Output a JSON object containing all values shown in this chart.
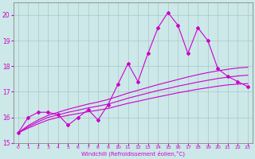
{
  "xlabel": "Windchill (Refroidissement éolien,°C)",
  "x": [
    0,
    1,
    2,
    3,
    4,
    5,
    6,
    7,
    8,
    9,
    10,
    11,
    12,
    13,
    14,
    15,
    16,
    17,
    18,
    19,
    20,
    21,
    22,
    23
  ],
  "y_main": [
    15.4,
    16.0,
    16.2,
    16.2,
    16.1,
    15.7,
    16.0,
    16.3,
    15.9,
    16.5,
    17.3,
    18.1,
    17.4,
    18.5,
    19.5,
    20.1,
    19.6,
    18.5,
    19.5,
    19.0,
    17.9,
    17.6,
    17.4,
    17.2
  ],
  "y_line1": [
    15.4,
    15.58,
    15.75,
    15.9,
    16.0,
    16.08,
    16.15,
    16.22,
    16.28,
    16.35,
    16.45,
    16.55,
    16.63,
    16.72,
    16.8,
    16.88,
    16.96,
    17.03,
    17.1,
    17.16,
    17.22,
    17.27,
    17.3,
    17.32
  ],
  "y_line2": [
    15.4,
    15.63,
    15.83,
    16.0,
    16.1,
    16.2,
    16.28,
    16.37,
    16.44,
    16.52,
    16.63,
    16.75,
    16.85,
    16.95,
    17.05,
    17.13,
    17.22,
    17.3,
    17.38,
    17.45,
    17.52,
    17.57,
    17.62,
    17.65
  ],
  "y_line3": [
    15.4,
    15.68,
    15.9,
    16.08,
    16.2,
    16.32,
    16.42,
    16.52,
    16.6,
    16.7,
    16.82,
    16.95,
    17.06,
    17.17,
    17.28,
    17.38,
    17.48,
    17.58,
    17.67,
    17.75,
    17.82,
    17.88,
    17.93,
    17.96
  ],
  "ylim": [
    15,
    20.5
  ],
  "xlim_min": -0.5,
  "xlim_max": 23.5,
  "yticks": [
    15,
    16,
    17,
    18,
    19,
    20
  ],
  "xticks": [
    0,
    1,
    2,
    3,
    4,
    5,
    6,
    7,
    8,
    9,
    10,
    11,
    12,
    13,
    14,
    15,
    16,
    17,
    18,
    19,
    20,
    21,
    22,
    23
  ],
  "line_color": "#cc00cc",
  "bg_color": "#cce8e8",
  "grid_color": "#aac8c8",
  "spine_color": "#888888"
}
